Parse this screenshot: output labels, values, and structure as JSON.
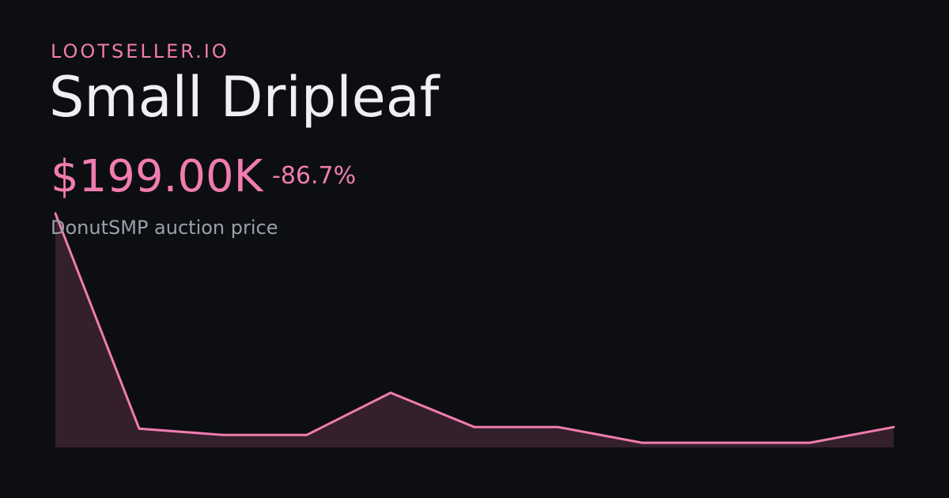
{
  "brand": "LOOTSELLER.IO",
  "title": "Small Dripleaf",
  "price": "$199.00K",
  "change": "-86.7%",
  "subtitle": "DonutSMP auction price",
  "colors": {
    "background": "#0d0e11",
    "accent": "#f07cb0",
    "fill": "#34202b",
    "title": "#eef0f4",
    "subtitle": "#9aa0ab"
  },
  "chart_data": {
    "type": "area",
    "title": "",
    "xlabel": "",
    "ylabel": "",
    "grid": false,
    "axes_visible": false,
    "series": [
      {
        "values": [
          1500,
          120,
          80,
          80,
          350,
          130,
          130,
          30,
          30,
          30,
          130
        ]
      }
    ],
    "ylim": [
      0,
      1500
    ]
  }
}
